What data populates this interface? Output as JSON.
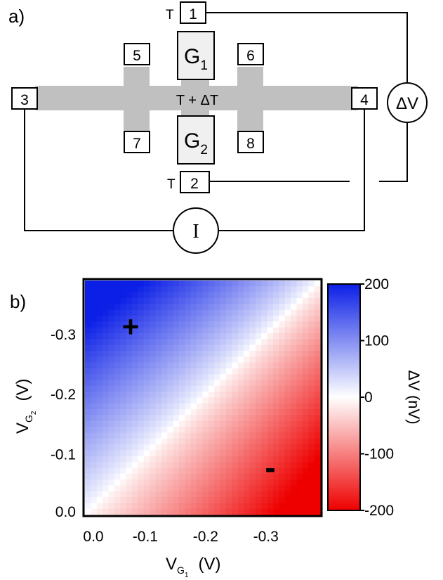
{
  "panel_a": {
    "label": "a)",
    "contacts": {
      "c1": "1",
      "c2": "2",
      "c3": "3",
      "c4": "4",
      "c5": "5",
      "c6": "6",
      "c7": "7",
      "c8": "8"
    },
    "temp_top": "T",
    "temp_bottom": "T",
    "channel_text": "T + ΔT",
    "gate1": {
      "main": "G",
      "sub": "1"
    },
    "gate2": {
      "main": "G",
      "sub": "2"
    },
    "voltmeter": "ΔV",
    "ammeter": "I",
    "colors": {
      "channel": "#c0c0c0",
      "gate_fill": "#f0f0f0"
    }
  },
  "panel_b": {
    "label": "b)",
    "plus_mark": "+",
    "minus_mark": "-",
    "xaxis": {
      "main": "V",
      "sub": "G",
      "subsub": "1",
      "unit": "(V)"
    },
    "yaxis": {
      "main": "V",
      "sub": "G",
      "subsub": "2",
      "unit": "(V)"
    },
    "colorbar": {
      "label": "ΔV  (nV)"
    },
    "colors": {
      "positive": "#0b1fe6",
      "zero": "#ffffff",
      "negative": "#ee0000"
    }
  },
  "chart_data": {
    "type": "heatmap",
    "title": "",
    "xlabel": "V_G1 (V)",
    "ylabel": "V_G2 (V)",
    "xlim": [
      0.0,
      -0.39
    ],
    "ylim": [
      0.0,
      -0.39
    ],
    "xticks": [
      "0.0",
      "-0.1",
      "-0.2",
      "-0.3"
    ],
    "yticks": [
      "0.0",
      "-0.1",
      "-0.2",
      "-0.3"
    ],
    "x_tick_values": [
      0.0,
      -0.1,
      -0.2,
      -0.3
    ],
    "y_tick_values": [
      0.0,
      -0.1,
      -0.2,
      -0.3
    ],
    "grid_size": [
      40,
      40
    ],
    "value_model": "ΔV increases (blue) when |V_G2| > |V_G1| and decreases (red) when |V_G1| > |V_G2|; ≈0 along the diagonal",
    "colorbar": {
      "label": "ΔV (nV)",
      "range": [
        -200,
        200
      ],
      "ticks": [
        200,
        100,
        0,
        -100,
        -200
      ],
      "tick_labels": [
        "200",
        "100",
        "0",
        "-100",
        "-200"
      ]
    },
    "sample_values_nV": {
      "corner_top_left": 200,
      "corner_bottom_right": -200,
      "diagonal": 0,
      "plus_region": 170,
      "minus_region": -150
    }
  }
}
